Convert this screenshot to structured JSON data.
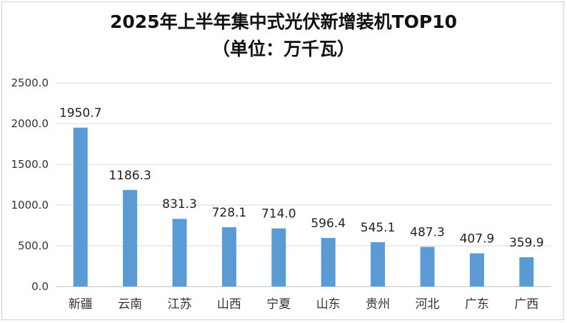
{
  "chart_data": {
    "type": "bar",
    "title": "2025年上半年集中式光伏新增装机TOP10",
    "subtitle": "（单位：万千瓦）",
    "categories": [
      "新疆",
      "云南",
      "江苏",
      "山西",
      "宁夏",
      "山东",
      "贵州",
      "河北",
      "广东",
      "广西"
    ],
    "values": [
      1950.7,
      1186.3,
      831.3,
      728.1,
      714.0,
      596.4,
      545.1,
      487.3,
      407.9,
      359.9
    ],
    "value_labels": [
      "1950.7",
      "1186.3",
      "831.3",
      "728.1",
      "714.0",
      "596.4",
      "545.1",
      "487.3",
      "407.9",
      "359.9"
    ],
    "ylim": [
      0,
      2500
    ],
    "yticks": [
      "0.0",
      "500.0",
      "1000.0",
      "1500.0",
      "2000.0",
      "2500.0"
    ],
    "grid": true,
    "legend": "none",
    "bar_color": "#5b9bd5"
  }
}
